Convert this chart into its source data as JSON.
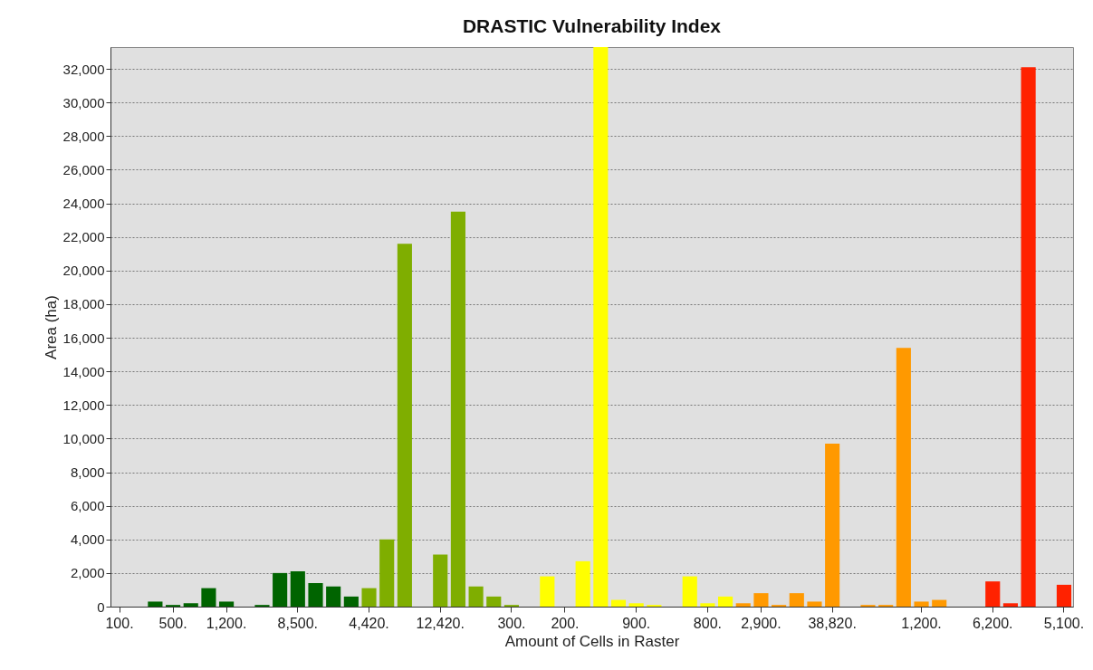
{
  "chart_data": {
    "type": "bar",
    "title": "DRASTIC Vulnerability Index",
    "xlabel": "Amount of Cells in Raster",
    "ylabel": "Area (ha)",
    "categories": [
      "100.",
      null,
      null,
      "500.",
      null,
      null,
      "1,200.",
      null,
      null,
      null,
      "8,500.",
      null,
      null,
      null,
      "4,420.",
      null,
      null,
      null,
      "12,420.",
      null,
      null,
      null,
      "300.",
      null,
      null,
      "200.",
      null,
      null,
      null,
      "900.",
      null,
      null,
      null,
      "800.",
      null,
      null,
      "2,900.",
      null,
      null,
      null,
      "38,820.",
      null,
      null,
      null,
      null,
      "1,200.",
      null,
      null,
      null,
      "6,200.",
      null,
      null,
      null,
      "5,100."
    ],
    "values": [
      0,
      0,
      300,
      100,
      200,
      1100,
      300,
      0,
      100,
      2000,
      2100,
      1400,
      1200,
      600,
      1100,
      4000,
      21600,
      0,
      3100,
      23500,
      1200,
      600,
      100,
      0,
      1800,
      0,
      2700,
      33300,
      400,
      200,
      100,
      0,
      1800,
      200,
      600,
      200,
      800,
      100,
      800,
      300,
      9700,
      0,
      100,
      100,
      15400,
      300,
      400,
      0,
      0,
      1500,
      200,
      32100,
      0,
      1300
    ],
    "colors": [
      "#006400",
      "#006400",
      "#006400",
      "#006400",
      "#006400",
      "#006400",
      "#006400",
      "#006400",
      "#006400",
      "#006400",
      "#006400",
      "#006400",
      "#006400",
      "#006400",
      "#7fae00",
      "#7fae00",
      "#7fae00",
      "#7fae00",
      "#7fae00",
      "#7fae00",
      "#7fae00",
      "#7fae00",
      "#7fae00",
      "#ffff00",
      "#ffff00",
      "#ffff00",
      "#ffff00",
      "#ffff00",
      "#ffff00",
      "#ffff00",
      "#ffff00",
      "#ffff00",
      "#ffff00",
      "#ffff00",
      "#ffff00",
      "#ff9900",
      "#ff9900",
      "#ff9900",
      "#ff9900",
      "#ff9900",
      "#ff9900",
      "#ff9900",
      "#ff9900",
      "#ff9900",
      "#ff9900",
      "#ff9900",
      "#ff9900",
      "#ff9900",
      "#ff2200",
      "#ff2200",
      "#ff2200",
      "#ff2200",
      "#ff2200",
      "#ff2200"
    ],
    "ylim": [
      0,
      33300
    ],
    "yticks": [
      0,
      {
        "value": 2000,
        "label": "2,000"
      },
      {
        "value": 4000,
        "label": "4,000"
      },
      {
        "value": 6000,
        "label": "6,000"
      },
      {
        "value": 8000,
        "label": "8,000"
      },
      {
        "value": 10000,
        "label": "10,000"
      },
      {
        "value": 12000,
        "label": "12,000"
      },
      {
        "value": 14000,
        "label": "14,000"
      },
      {
        "value": 16000,
        "label": "16,000"
      },
      {
        "value": 18000,
        "label": "18,000"
      },
      {
        "value": 20000,
        "label": "20,000"
      },
      {
        "value": 22000,
        "label": "22,000"
      },
      {
        "value": 24000,
        "label": "24,000"
      },
      {
        "value": 26000,
        "label": "26,000"
      },
      {
        "value": 28000,
        "label": "28,000"
      },
      {
        "value": 30000,
        "label": "30,000"
      },
      {
        "value": 32000,
        "label": "32,000"
      }
    ],
    "grid": "y",
    "legend": false
  }
}
